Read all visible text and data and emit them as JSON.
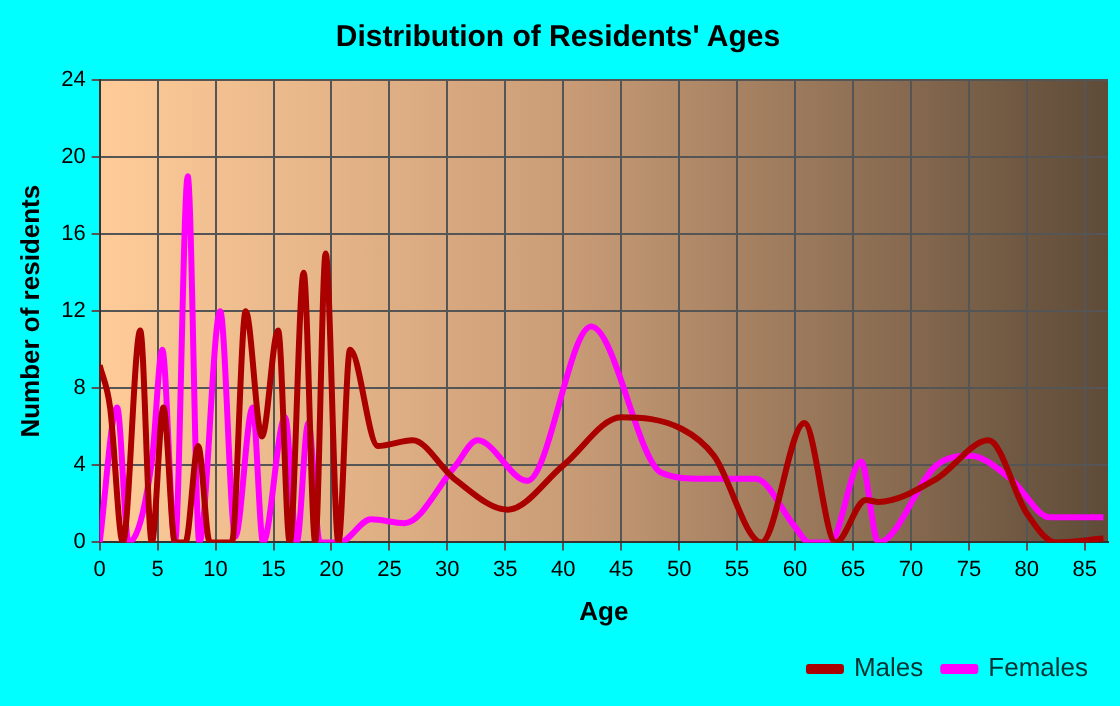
{
  "chart_data": {
    "type": "line",
    "title": "Distribution of Residents' Ages",
    "xlabel": "Age",
    "ylabel": "Number of residents",
    "xlim": [
      0,
      87
    ],
    "xticks": [
      0,
      5,
      10,
      15,
      20,
      25,
      30,
      35,
      40,
      45,
      50,
      55,
      60,
      65,
      70,
      75,
      80,
      85
    ],
    "ylim": [
      0,
      24
    ],
    "yticks": [
      0,
      4,
      8,
      12,
      16,
      20,
      24
    ],
    "grid": true,
    "legend": "bottom right",
    "marker": "none",
    "line_style": "solid",
    "series": [
      {
        "name": "Males",
        "color": "#aa0000",
        "x": [
          0,
          0.9,
          2,
          3.5,
          4.5,
          5.5,
          6.5,
          7.4,
          8.5,
          9.5,
          11.4,
          12.6,
          14,
          15.4,
          16.4,
          17.6,
          18.6,
          19.5,
          20.6,
          21.6,
          24,
          27,
          30.6,
          35.2,
          40,
          45,
          50.2,
          53,
          57.1,
          60.8,
          63.5,
          66.1,
          67.2,
          72.2,
          76.7,
          80,
          82.5,
          86.6
        ],
        "values": [
          9.2,
          7,
          0,
          11,
          0,
          7,
          0,
          0,
          5,
          0,
          0,
          12,
          5.5,
          11,
          0,
          14,
          0,
          15,
          0,
          10,
          5,
          5.3,
          3.3,
          1.7,
          4,
          6.5,
          5.9,
          4.5,
          0,
          6.2,
          0,
          2.2,
          2.1,
          3.3,
          5.3,
          1.5,
          0,
          0.2
        ]
      },
      {
        "name": "Females",
        "color": "#ff00ff",
        "x": [
          0,
          1.5,
          2.5,
          4.5,
          5.4,
          6.5,
          7.6,
          8.6,
          10.4,
          11.7,
          13.2,
          14.1,
          16,
          17,
          18,
          19,
          20.7,
          23.4,
          26.3,
          30.6,
          32.6,
          36.9,
          42.4,
          48.5,
          52,
          56.6,
          60,
          61.2,
          63,
          65.7,
          67.2,
          72.2,
          75.1,
          78.6,
          82,
          86.6
        ],
        "values": [
          0,
          7,
          0,
          4.2,
          10,
          0,
          19,
          0,
          12,
          0.3,
          7,
          0,
          6.5,
          0,
          6.2,
          0,
          0,
          1.2,
          1,
          3.9,
          5.3,
          3.2,
          11.2,
          3.6,
          3.3,
          3.3,
          0.8,
          0,
          0,
          4.2,
          0,
          4,
          4.5,
          3.3,
          1.3,
          1.3
        ]
      }
    ]
  }
}
